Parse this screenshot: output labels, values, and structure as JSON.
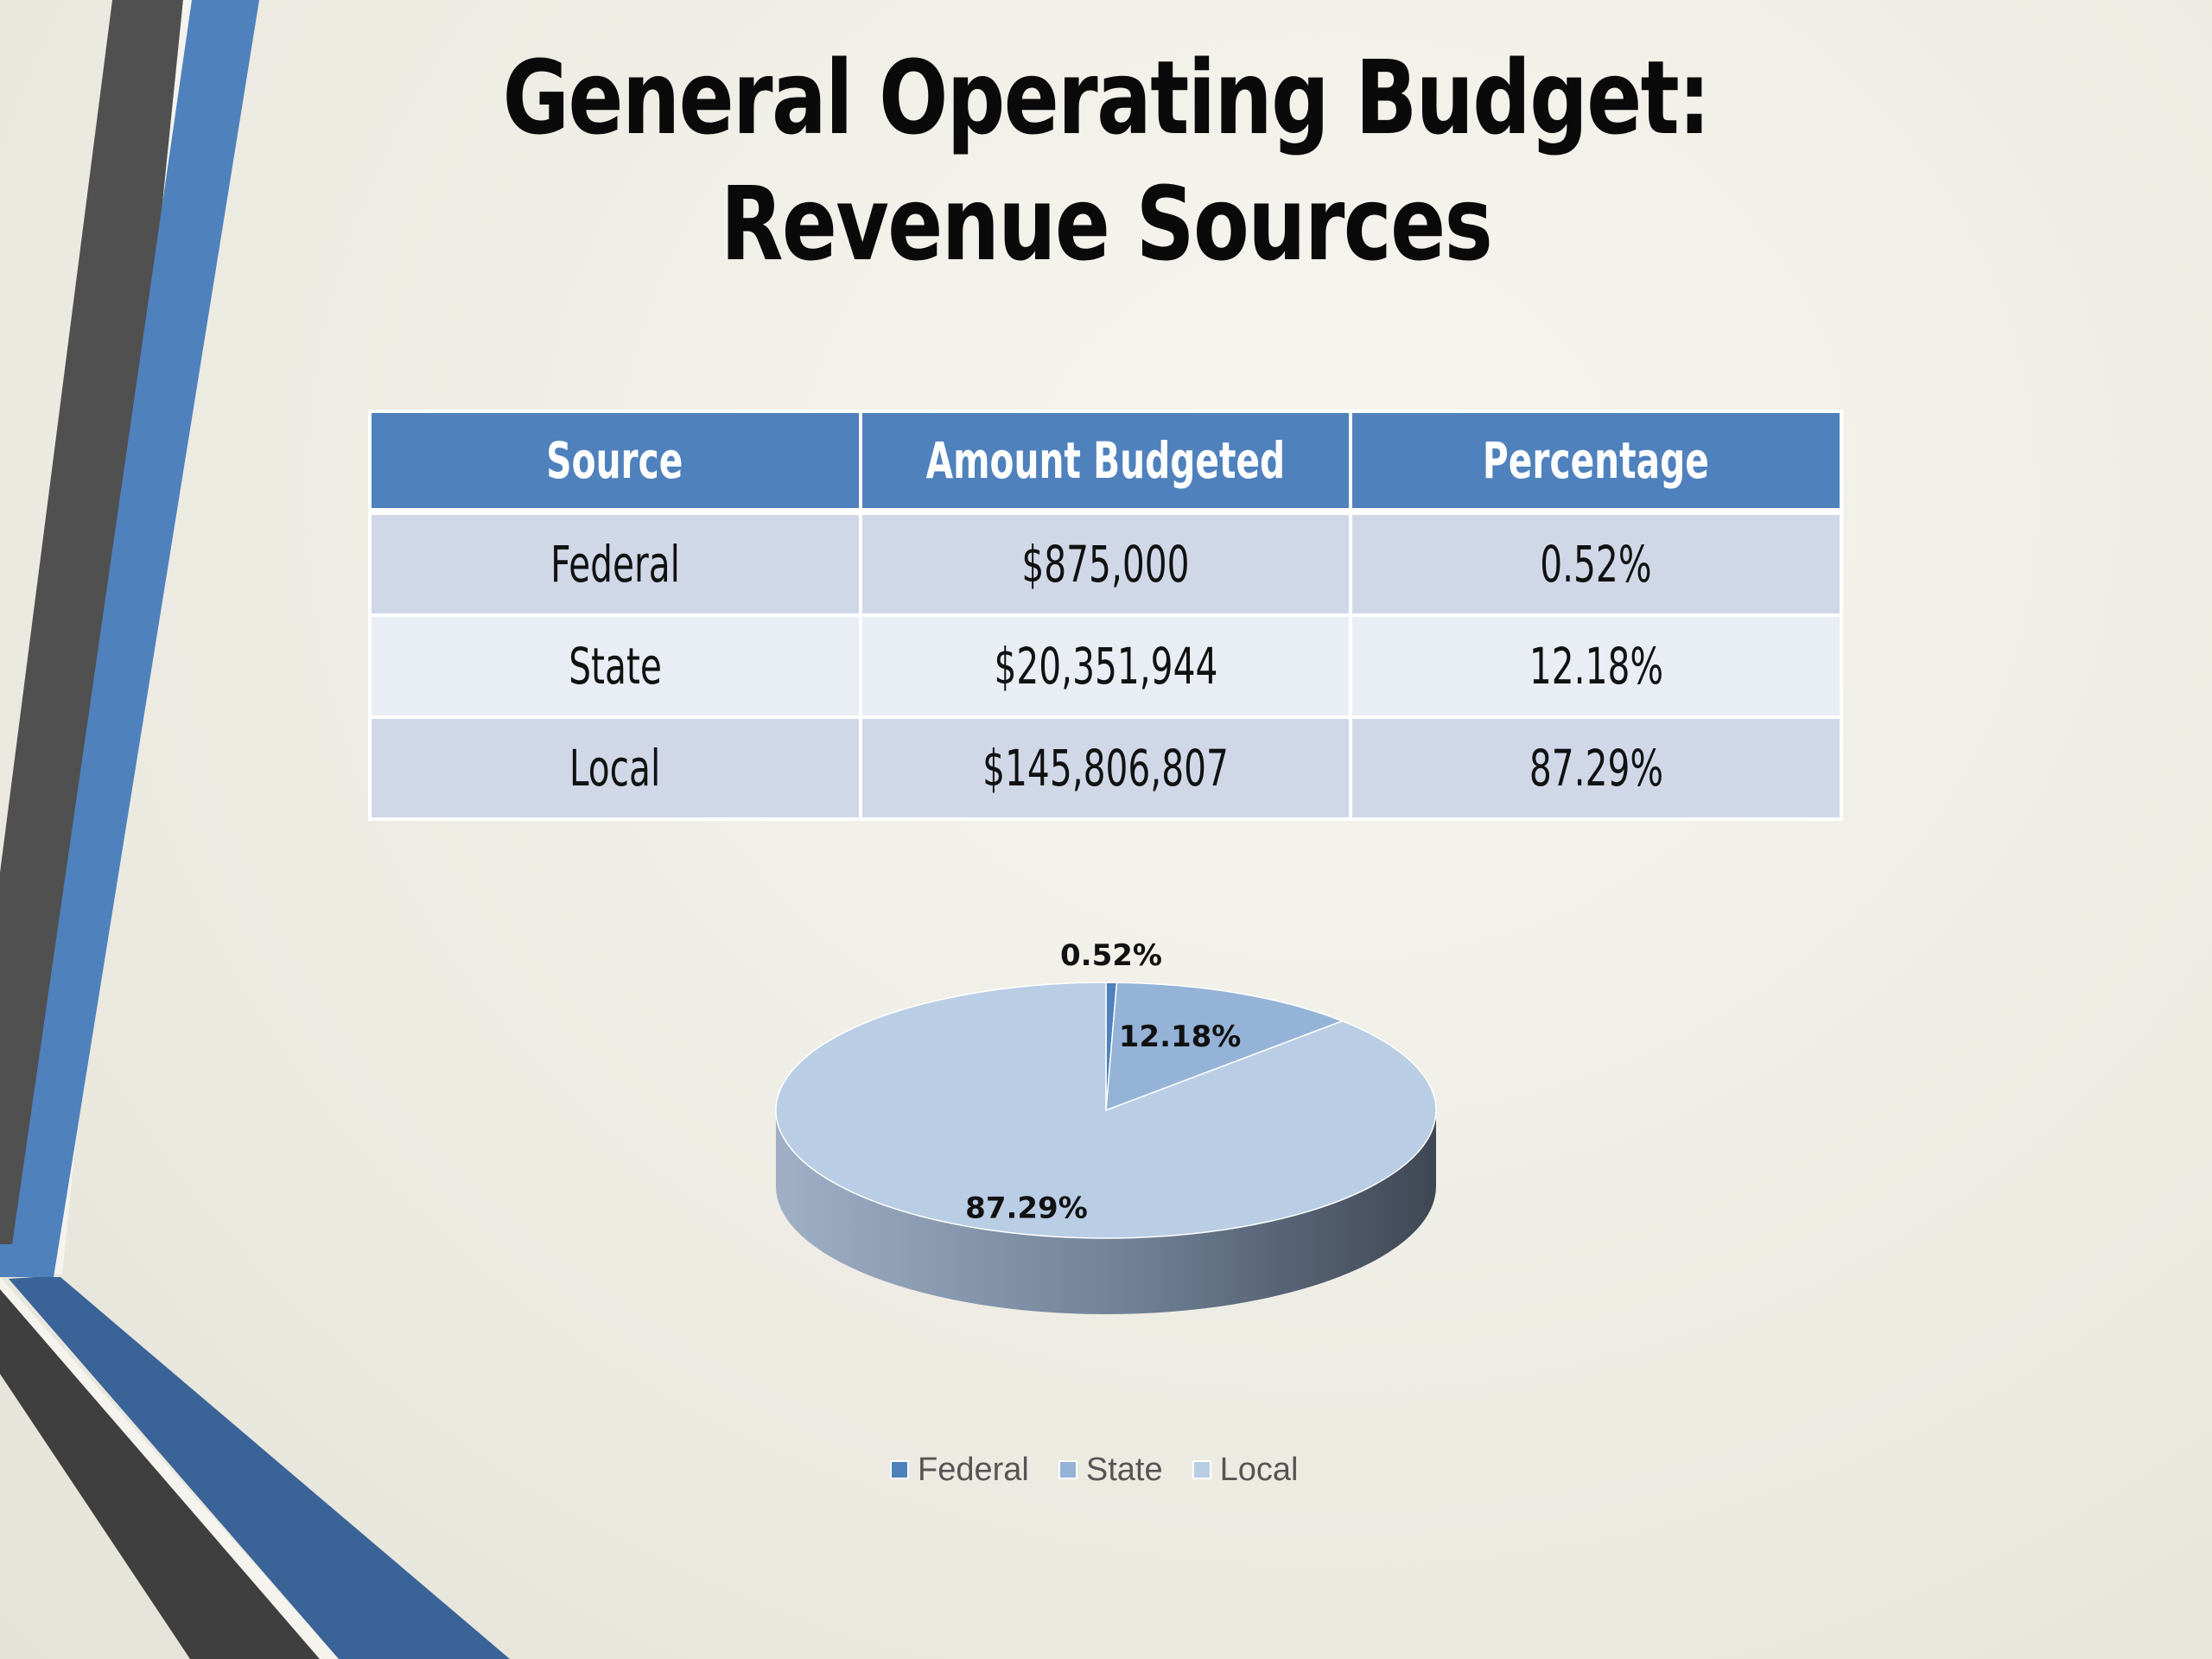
{
  "slide": {
    "title_line1": "General Operating Budget:",
    "title_line2": "Revenue Sources"
  },
  "table": {
    "headers": [
      "Source",
      "Amount Budgeted",
      "Percentage"
    ],
    "rows": [
      {
        "source": "Federal",
        "amount": "$875,000",
        "percentage": "0.52%"
      },
      {
        "source": "State",
        "amount": "$20,351,944",
        "percentage": "12.18%"
      },
      {
        "source": "Local",
        "amount": "$145,806,807",
        "percentage": "87.29%"
      }
    ]
  },
  "chart_data": {
    "type": "pie",
    "style": "3d",
    "categories": [
      "Federal",
      "State",
      "Local"
    ],
    "values": [
      0.52,
      12.18,
      87.29
    ],
    "labels": [
      "0.52%",
      "12.18%",
      "87.29%"
    ],
    "colors": [
      "#4f81bd",
      "#95b3d7",
      "#b9cde5"
    ],
    "legend": "bottom"
  },
  "theme": {
    "accent_blue": "#4f81bd",
    "dark_stripe": "#404040",
    "header_bg": "#4f81bd",
    "row_odd_bg": "#d0d8e8",
    "row_even_bg": "#e9edf4"
  }
}
